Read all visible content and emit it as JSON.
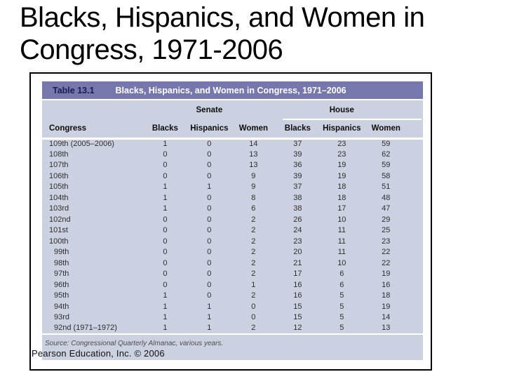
{
  "slide": {
    "title_lines": [
      "Blacks, Hispanics, and Women in",
      "Congress, 1971-2006"
    ],
    "footer": "Pearson Education, Inc. © 2006"
  },
  "table": {
    "label": "Table 13.1",
    "title": "Blacks, Hispanics, and Women in Congress, 1971–2006",
    "group_headers": [
      "Senate",
      "House"
    ],
    "columns": [
      "Congress",
      "Blacks",
      "Hispanics",
      "Women",
      "Blacks",
      "Hispanics",
      "Women"
    ],
    "rows": [
      [
        "109th (2005–2006)",
        1,
        0,
        14,
        37,
        23,
        59
      ],
      [
        "108th",
        0,
        0,
        13,
        39,
        23,
        62
      ],
      [
        "107th",
        0,
        0,
        13,
        36,
        19,
        59
      ],
      [
        "106th",
        0,
        0,
        9,
        39,
        19,
        58
      ],
      [
        "105th",
        1,
        1,
        9,
        37,
        18,
        51
      ],
      [
        "104th",
        1,
        0,
        8,
        38,
        18,
        48
      ],
      [
        "103rd",
        1,
        0,
        6,
        38,
        17,
        47
      ],
      [
        "102nd",
        0,
        0,
        2,
        26,
        10,
        29
      ],
      [
        "101st",
        0,
        0,
        2,
        24,
        11,
        25
      ],
      [
        "100th",
        0,
        0,
        2,
        23,
        11,
        23
      ],
      [
        "99th",
        0,
        0,
        2,
        20,
        11,
        22
      ],
      [
        "98th",
        0,
        0,
        2,
        21,
        10,
        22
      ],
      [
        "97th",
        0,
        0,
        2,
        17,
        6,
        19
      ],
      [
        "96th",
        0,
        0,
        1,
        16,
        6,
        16
      ],
      [
        "95th",
        1,
        0,
        2,
        16,
        5,
        18
      ],
      [
        "94th",
        1,
        1,
        0,
        15,
        5,
        19
      ],
      [
        "93rd",
        1,
        1,
        0,
        15,
        5,
        14
      ],
      [
        "92nd (1971–1972)",
        1,
        1,
        2,
        12,
        5,
        13
      ]
    ],
    "source": "Source: Congressional Quarterly Almanac, various years.",
    "colors": {
      "band": "#7678ad",
      "band_label": "#1c1c4e",
      "body_background": "#ccd1e2",
      "rule": "#ffffff",
      "frame_border": "#000000"
    }
  }
}
